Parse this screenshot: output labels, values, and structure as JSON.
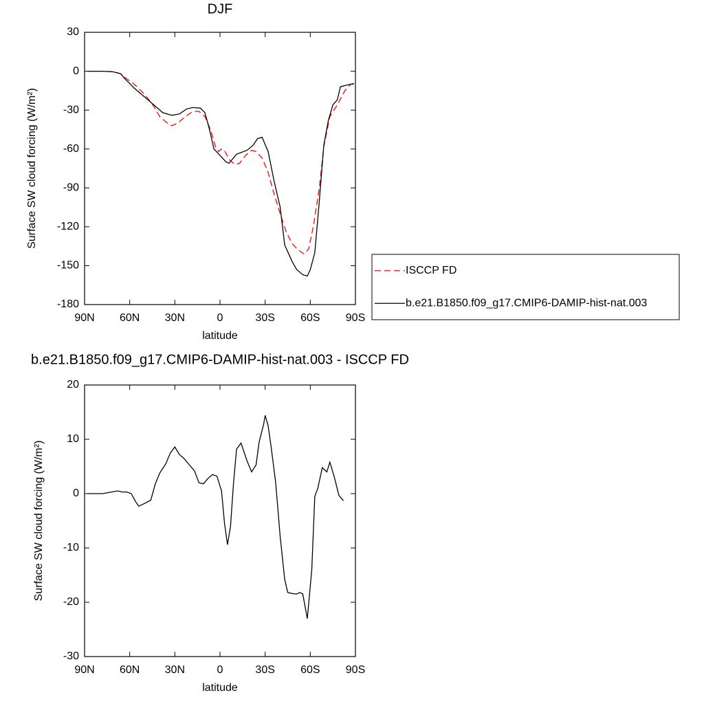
{
  "chart_data": [
    {
      "type": "line",
      "title": "DJF",
      "xlabel": "latitude",
      "ylabel": "Surface SW cloud forcing (W/m²)",
      "xlim": [
        90,
        -90
      ],
      "xticks": [
        {
          "value": 90,
          "label": "90N"
        },
        {
          "value": 60,
          "label": "60N"
        },
        {
          "value": 30,
          "label": "30N"
        },
        0,
        {
          "value": -30,
          "label": "30S"
        },
        {
          "value": -60,
          "label": "60S"
        },
        {
          "value": -90,
          "label": "90S"
        }
      ],
      "ylim": [
        -180,
        30
      ],
      "yticks": [
        -180,
        -150,
        -120,
        -90,
        -60,
        -30,
        0,
        30
      ],
      "legend": "right",
      "series": [
        {
          "name": "ISCCP FD",
          "color": "#ff0000",
          "style": "dashed",
          "x": [
            88,
            78,
            70,
            66,
            63,
            57,
            50,
            44,
            40,
            35,
            32,
            28,
            23,
            18,
            14,
            10,
            6,
            3,
            1,
            -1,
            -3,
            -6,
            -10,
            -13,
            -17,
            -21,
            -24,
            -28,
            -32,
            -36,
            -40,
            -44,
            -48,
            -52,
            -56,
            -59,
            -62,
            -66,
            -69,
            -73,
            -78,
            -83,
            -87,
            -89
          ],
          "values": [
            0,
            0,
            -0.5,
            -2,
            -5,
            -10,
            -18,
            -27,
            -35,
            -40,
            -42,
            -40,
            -35,
            -31,
            -31,
            -35,
            -46,
            -58,
            -62,
            -60,
            -61,
            -68,
            -72,
            -71,
            -65,
            -61,
            -62,
            -67,
            -78,
            -95,
            -110,
            -124,
            -133,
            -138,
            -141,
            -137,
            -120,
            -90,
            -58,
            -35,
            -26,
            -15,
            -10,
            -10
          ]
        },
        {
          "name": "b.e21.B1850.f09_g17.CMIP6-DAMIP-hist-nat.003",
          "color": "#000000",
          "style": "solid",
          "x": [
            88,
            78,
            71,
            66,
            63,
            57,
            50,
            43,
            38,
            32,
            27,
            22,
            18,
            13,
            10,
            7,
            4,
            0,
            -4,
            -6,
            -11,
            -18,
            -22,
            -25,
            -28,
            -32,
            -36,
            -40,
            -43,
            -48,
            -51,
            -55,
            -58,
            -60,
            -63,
            -66,
            -69,
            -72,
            -75,
            -78,
            -80,
            -85,
            -89
          ],
          "values": [
            0,
            0,
            -0.5,
            -2,
            -6,
            -13,
            -20,
            -27,
            -32,
            -34,
            -33,
            -29,
            -28,
            -28.5,
            -32,
            -45,
            -60,
            -65,
            -70,
            -71,
            -64,
            -61,
            -57,
            -52,
            -51,
            -62,
            -85,
            -105,
            -134,
            -147,
            -153,
            -157,
            -158,
            -153,
            -140,
            -100,
            -57,
            -38,
            -26,
            -22,
            -12,
            -10.5,
            -9.5
          ]
        }
      ]
    },
    {
      "type": "line",
      "title": "b.e21.B1850.f09_g17.CMIP6-DAMIP-hist-nat.003 - ISCCP FD",
      "xlabel": "latitude",
      "ylabel": "Surface SW cloud forcing (W/m²)",
      "xlim": [
        90,
        -90
      ],
      "xticks": [
        {
          "value": 90,
          "label": "90N"
        },
        {
          "value": 60,
          "label": "60N"
        },
        {
          "value": 30,
          "label": "30N"
        },
        0,
        {
          "value": -30,
          "label": "30S"
        },
        {
          "value": -60,
          "label": "60S"
        },
        {
          "value": -90,
          "label": "90S"
        }
      ],
      "ylim": [
        -30,
        20
      ],
      "yticks": [
        -30,
        -20,
        -10,
        0,
        10,
        20
      ],
      "series": [
        {
          "color": "#000000",
          "style": "solid",
          "x": [
            88,
            78,
            72,
            68,
            65,
            62,
            59,
            56,
            54,
            50,
            46,
            43,
            40,
            36,
            33,
            30,
            27,
            24,
            21,
            17,
            14,
            11,
            8,
            5,
            2,
            -1,
            -3,
            -5,
            -7,
            -9,
            -11,
            -14,
            -18,
            -21,
            -24,
            -26,
            -29,
            -30,
            -32,
            -34,
            -37,
            -40,
            -43,
            -45,
            -48,
            -51,
            -53,
            -55,
            -58,
            -61,
            -63,
            -65,
            -68,
            -71,
            -73,
            -76,
            -79,
            -82
          ],
          "values": [
            0,
            0,
            0.3,
            0.5,
            0.3,
            0.3,
            0,
            -1.5,
            -2.3,
            -1.8,
            -1.2,
            1.8,
            3.8,
            5.5,
            7.5,
            8.6,
            7.2,
            6.5,
            5.5,
            4.2,
            2,
            1.8,
            2.8,
            3.5,
            3.2,
            0.5,
            -5.5,
            -9.4,
            -6,
            2,
            8.2,
            9.3,
            6,
            4,
            5.3,
            9.5,
            12.8,
            14.4,
            12.5,
            8.6,
            2,
            -8,
            -15.8,
            -18.2,
            -18.4,
            -18.5,
            -18.2,
            -18.5,
            -23,
            -14,
            -0.5,
            1,
            4.8,
            4,
            5.8,
            3,
            -0.3,
            -1.3
          ]
        }
      ]
    }
  ]
}
